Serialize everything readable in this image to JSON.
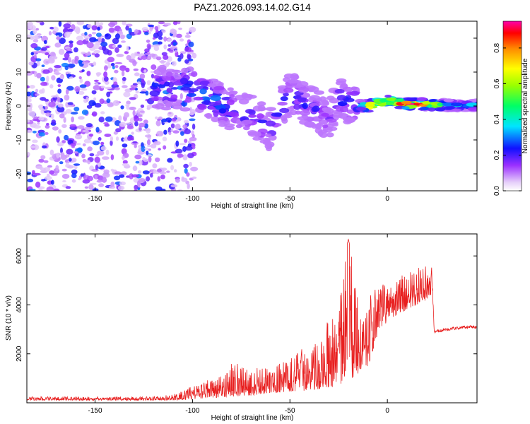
{
  "figure": {
    "title": "PAZ1.2026.093.14.02.G14"
  },
  "chart_data": [
    {
      "type": "heatmap",
      "xlabel": "Height of straight line (km)",
      "ylabel": "Frequency (Hz)",
      "xlim": [
        -185,
        46
      ],
      "ylim": [
        -25,
        25
      ],
      "xticks": [
        -150,
        -100,
        -50,
        0
      ],
      "yticks": [
        -20,
        -10,
        0,
        10,
        20
      ],
      "colorbar": {
        "label": "Normalized spectral amplitude",
        "range": [
          0.0,
          0.95
        ],
        "ticks": [
          0.0,
          0.2,
          0.4,
          0.6,
          0.8
        ]
      },
      "noise_region": {
        "x_range": [
          -185,
          -105
        ],
        "y_range": [
          -25,
          25
        ],
        "amplitude_range": [
          0.05,
          0.3
        ]
      },
      "ridge": [
        {
          "x": -120,
          "y": 5.5,
          "amp": 0.3
        },
        {
          "x": -110,
          "y": 5.0,
          "amp": 0.25
        },
        {
          "x": -100,
          "y": 5.0,
          "amp": 0.3
        },
        {
          "x": -90,
          "y": 2.0,
          "amp": 0.3
        },
        {
          "x": -80,
          "y": -1.0,
          "amp": 0.25
        },
        {
          "x": -70,
          "y": -3.0,
          "amp": 0.22
        },
        {
          "x": -60,
          "y": -7.0,
          "amp": 0.2
        },
        {
          "x": -50,
          "y": 4.0,
          "amp": 0.25
        },
        {
          "x": -40,
          "y": 0.0,
          "amp": 0.22
        },
        {
          "x": -30,
          "y": -4.0,
          "amp": 0.18
        },
        {
          "x": -25,
          "y": 2.0,
          "amp": 0.22
        },
        {
          "x": -15,
          "y": 0.0,
          "amp": 0.3
        },
        {
          "x": -10,
          "y": 0.0,
          "amp": 0.85
        },
        {
          "x": 0,
          "y": 1.5,
          "amp": 0.8
        },
        {
          "x": 10,
          "y": 0.5,
          "amp": 0.9
        },
        {
          "x": 20,
          "y": 0.5,
          "amp": 0.85
        },
        {
          "x": 30,
          "y": 0.2,
          "amp": 0.4
        },
        {
          "x": 46,
          "y": 0.2,
          "amp": 0.35
        }
      ]
    },
    {
      "type": "line",
      "xlabel": "Height of straight line (km)",
      "ylabel": "SNR (10 * v/v)",
      "xlim": [
        -185,
        46
      ],
      "ylim": [
        0,
        6900
      ],
      "xticks": [
        -150,
        -100,
        -50,
        0
      ],
      "yticks": [
        2000,
        4000,
        6000
      ],
      "series": [
        {
          "name": "SNR",
          "color": "#e82020",
          "envelope": {
            "x": [
              -185,
              -150,
              -120,
              -110,
              -100,
              -90,
              -80,
              -70,
              -60,
              -50,
              -40,
              -30,
              -25,
              -20,
              -15,
              -10,
              -5,
              0,
              5,
              10,
              15,
              20,
              23,
              24,
              30,
              40,
              46
            ],
            "upper": [
              250,
              250,
              250,
              350,
              700,
              1000,
              1600,
              1600,
              1400,
              1900,
              2400,
              3600,
              3800,
              6900,
              4300,
              4600,
              4800,
              4900,
              5100,
              5300,
              5500,
              5600,
              5600,
              3000,
              3100,
              3200,
              3200
            ],
            "lower": [
              100,
              100,
              100,
              100,
              150,
              200,
              250,
              300,
              400,
              450,
              500,
              600,
              700,
              900,
              1200,
              1400,
              2800,
              3300,
              3600,
              3800,
              4000,
              4200,
              4500,
              2700,
              2800,
              2900,
              2900
            ]
          }
        }
      ]
    }
  ]
}
